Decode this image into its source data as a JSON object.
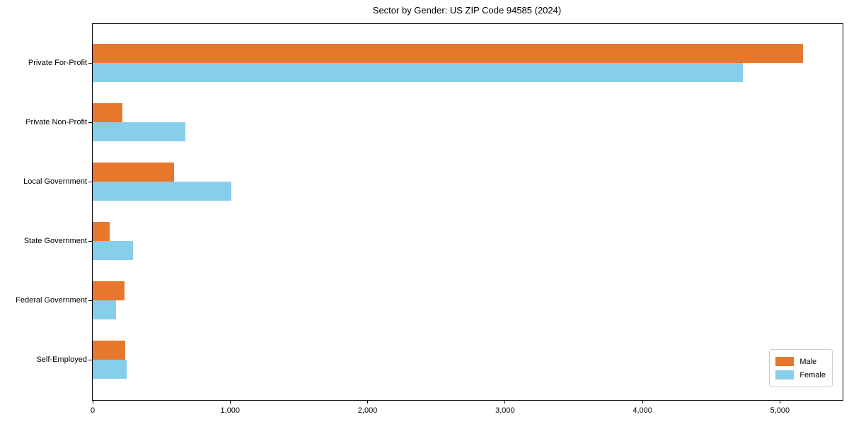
{
  "title": "Sector by Gender: US ZIP Code 94585 (2024)",
  "legend": {
    "items": [
      {
        "label": "Male",
        "color": "#E8772E"
      },
      {
        "label": "Female",
        "color": "#87CEEB"
      }
    ]
  },
  "x_axis": {
    "tick_labels": [
      "0",
      "1,000",
      "2,000",
      "3,000",
      "4,000",
      "5,000"
    ]
  },
  "chart_data": {
    "type": "bar",
    "orientation": "horizontal",
    "title": "Sector by Gender: US ZIP Code 94585 (2024)",
    "categories": [
      "Private For-Profit",
      "Private Non-Profit",
      "Local Government",
      "State Government",
      "Federal Government",
      "Self-Employed"
    ],
    "series": [
      {
        "name": "Male",
        "color": "#E8772E",
        "values": [
          5170,
          215,
          590,
          125,
          230,
          235
        ]
      },
      {
        "name": "Female",
        "color": "#87CEEB",
        "values": [
          4730,
          675,
          1010,
          295,
          170,
          245
        ]
      }
    ],
    "xlim": [
      0,
      5456
    ],
    "xticks": [
      0,
      1000,
      2000,
      3000,
      4000,
      5000
    ],
    "xlabel": "",
    "ylabel": "",
    "grid": false,
    "legend_position": "lower right"
  }
}
